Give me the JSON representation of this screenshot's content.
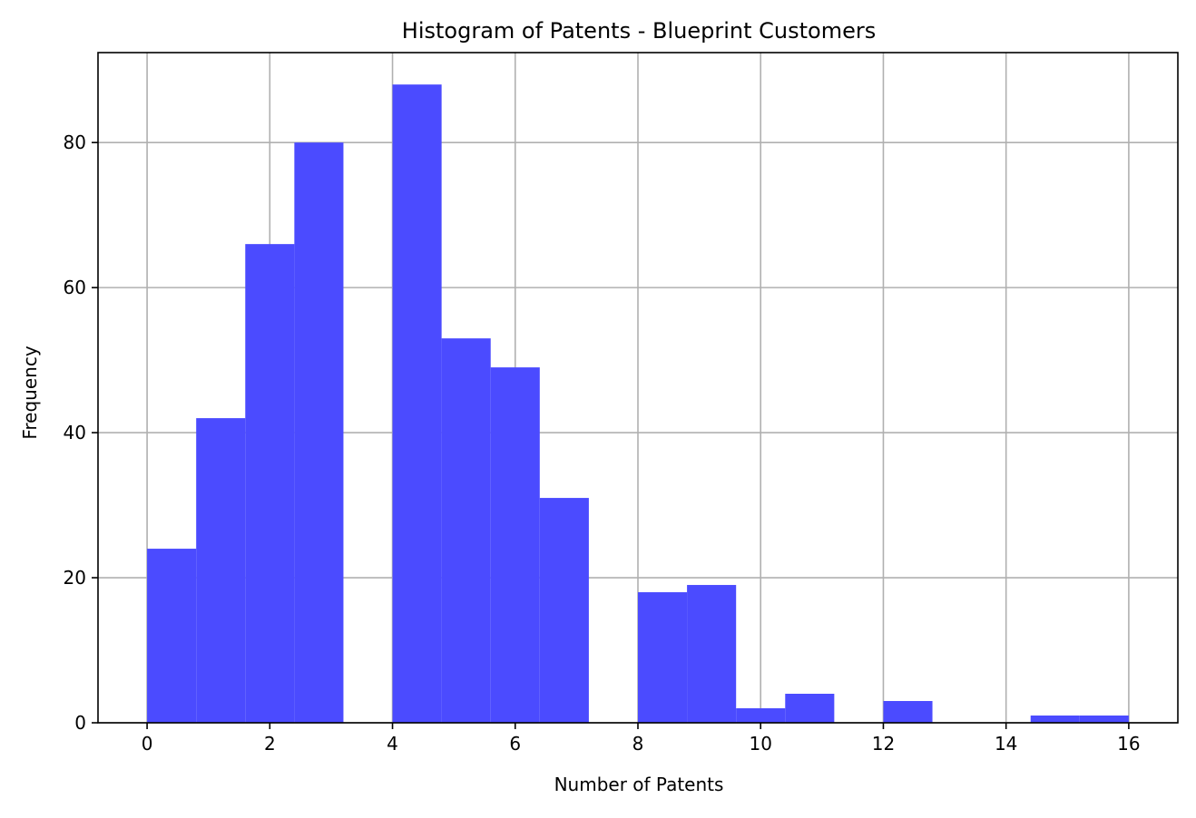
{
  "chart_data": {
    "type": "histogram",
    "title": "Histogram of Patents - Blueprint Customers",
    "xlabel": "Number of Patents",
    "ylabel": "Frequency",
    "bin_width": 0.8,
    "bins": [
      {
        "start": 0.0,
        "end": 0.8,
        "count": 24
      },
      {
        "start": 0.8,
        "end": 1.6,
        "count": 42
      },
      {
        "start": 1.6,
        "end": 2.4,
        "count": 66
      },
      {
        "start": 2.4,
        "end": 3.2,
        "count": 80
      },
      {
        "start": 3.2,
        "end": 4.0,
        "count": 0
      },
      {
        "start": 4.0,
        "end": 4.8,
        "count": 88
      },
      {
        "start": 4.8,
        "end": 5.6,
        "count": 53
      },
      {
        "start": 5.6,
        "end": 6.4,
        "count": 49
      },
      {
        "start": 6.4,
        "end": 7.2,
        "count": 31
      },
      {
        "start": 7.2,
        "end": 8.0,
        "count": 0
      },
      {
        "start": 8.0,
        "end": 8.8,
        "count": 18
      },
      {
        "start": 8.8,
        "end": 9.6,
        "count": 19
      },
      {
        "start": 9.6,
        "end": 10.4,
        "count": 2
      },
      {
        "start": 10.4,
        "end": 11.2,
        "count": 4
      },
      {
        "start": 11.2,
        "end": 12.0,
        "count": 0
      },
      {
        "start": 12.0,
        "end": 12.8,
        "count": 3
      },
      {
        "start": 12.8,
        "end": 13.6,
        "count": 0
      },
      {
        "start": 13.6,
        "end": 14.4,
        "count": 0
      },
      {
        "start": 14.4,
        "end": 15.2,
        "count": 1
      },
      {
        "start": 15.2,
        "end": 16.0,
        "count": 1
      }
    ],
    "xlim": [
      -0.8,
      16.8
    ],
    "ylim": [
      0,
      92.4
    ],
    "xticks": [
      0,
      2,
      4,
      6,
      8,
      10,
      12,
      14,
      16
    ],
    "yticks": [
      0,
      20,
      40,
      60,
      80
    ],
    "bar_color": "#4b4bff",
    "grid": true,
    "grid_color": "#b0b0b0"
  }
}
